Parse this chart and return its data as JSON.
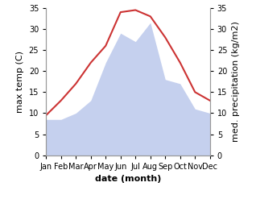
{
  "months": [
    "Jan",
    "Feb",
    "Mar",
    "Apr",
    "May",
    "Jun",
    "Jul",
    "Aug",
    "Sep",
    "Oct",
    "Nov",
    "Dec"
  ],
  "temperature": [
    9.5,
    13.0,
    17.0,
    22.0,
    26.0,
    34.0,
    34.5,
    33.0,
    28.0,
    22.0,
    15.0,
    13.0
  ],
  "precipitation": [
    8.5,
    8.5,
    10.0,
    13.0,
    22.0,
    29.0,
    27.0,
    31.5,
    18.0,
    17.0,
    11.0,
    10.0
  ],
  "temp_color": "#cc3333",
  "precip_fill_color": "#c5d0ee",
  "ylim": [
    0,
    35
  ],
  "yticks": [
    0,
    5,
    10,
    15,
    20,
    25,
    30,
    35
  ],
  "ylabel_left": "max temp (C)",
  "ylabel_right": "med. precipitation (kg/m2)",
  "xlabel": "date (month)",
  "bg_color": "#ffffff",
  "plot_bg_color": "#ffffff",
  "spine_color": "#999999",
  "tick_fontsize": 7,
  "label_fontsize": 8,
  "xlabel_fontsize": 8
}
